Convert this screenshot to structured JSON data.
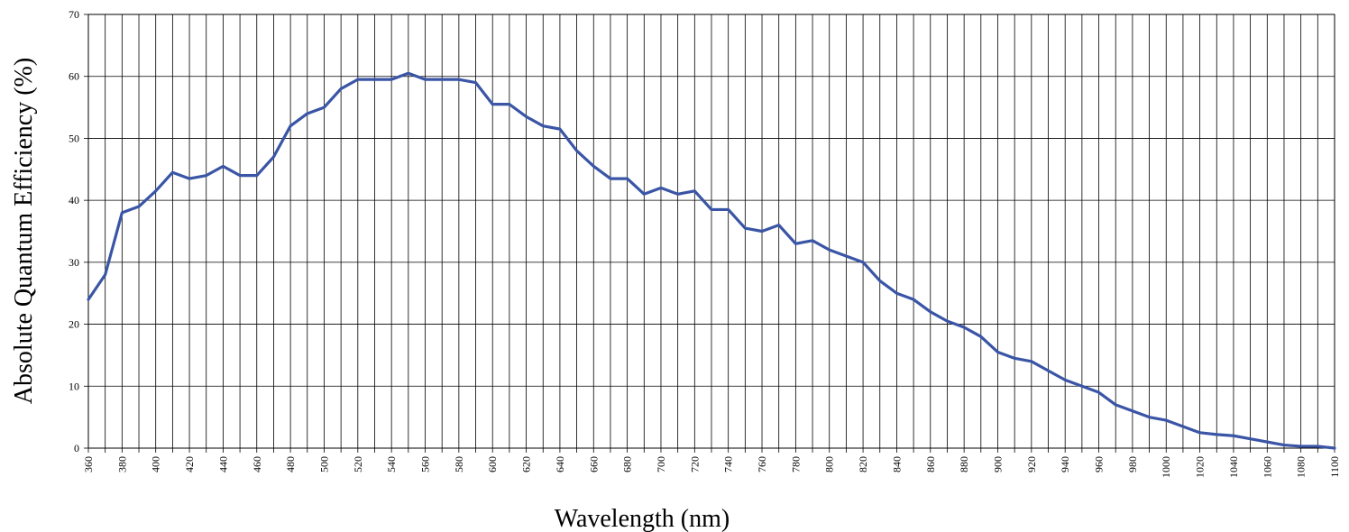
{
  "chart_data": {
    "type": "line",
    "title": "",
    "xlabel": "Wavelength (nm)",
    "ylabel": "Absolute Quantum Efficiency (%)",
    "xlim": [
      360,
      1100
    ],
    "ylim": [
      0,
      70
    ],
    "x_tick_step": 10,
    "x_tick_labels": [
      360,
      380,
      400,
      420,
      440,
      460,
      480,
      500,
      520,
      540,
      560,
      580,
      600,
      620,
      640,
      660,
      680,
      700,
      720,
      740,
      760,
      780,
      800,
      820,
      840,
      860,
      880,
      900,
      920,
      940,
      960,
      980,
      1000,
      1020,
      1040,
      1060,
      1080,
      1100
    ],
    "y_ticks": [
      0,
      10,
      20,
      30,
      40,
      50,
      60,
      70
    ],
    "grid": true,
    "legend": "none",
    "line_color": "#3a55a6",
    "series": [
      {
        "x": [
          360,
          370,
          380,
          390,
          400,
          410,
          420,
          430,
          440,
          450,
          460,
          470,
          480,
          490,
          500,
          510,
          520,
          530,
          540,
          550,
          560,
          570,
          580,
          590,
          600,
          610,
          620,
          630,
          640,
          650,
          660,
          670,
          680,
          690,
          700,
          710,
          720,
          730,
          740,
          750,
          760,
          770,
          780,
          790,
          800,
          810,
          820,
          830,
          840,
          850,
          860,
          870,
          880,
          890,
          900,
          910,
          920,
          930,
          940,
          950,
          960,
          970,
          980,
          990,
          1000,
          1010,
          1020,
          1030,
          1040,
          1050,
          1060,
          1070,
          1080,
          1090,
          1100
        ],
        "values": [
          24,
          28,
          38,
          39,
          41.5,
          44.5,
          43.5,
          44,
          45.5,
          44,
          44,
          47,
          52,
          54,
          55,
          58,
          59.5,
          59.5,
          59.5,
          60.5,
          59.5,
          59.5,
          59.5,
          59,
          55.5,
          55.5,
          53.5,
          52,
          51.5,
          48,
          45.5,
          43.5,
          43.5,
          41,
          42,
          41,
          41.5,
          38.5,
          38.5,
          35.5,
          35,
          36,
          33,
          33.5,
          32,
          31,
          30,
          27,
          25,
          24,
          22,
          20.5,
          19.5,
          18,
          15.5,
          14.5,
          14,
          12.5,
          11,
          10,
          9,
          7,
          6,
          5,
          4.5,
          3.5,
          2.5,
          2.2,
          2,
          1.5,
          1,
          0.5,
          0.3,
          0.3,
          0
        ]
      }
    ]
  }
}
